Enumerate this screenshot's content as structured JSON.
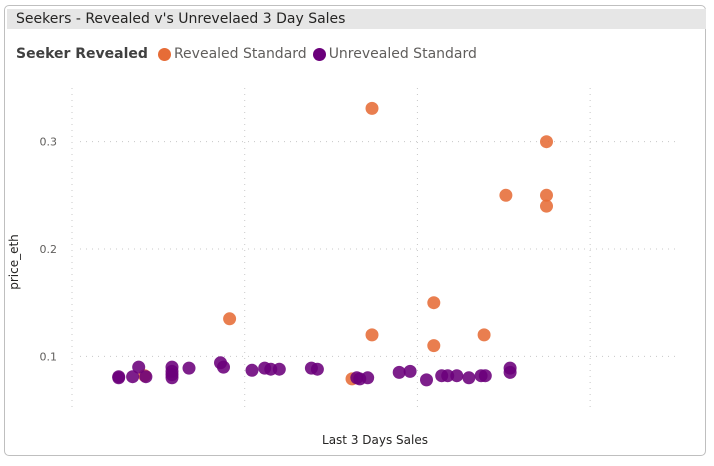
{
  "chart_data": {
    "type": "scatter",
    "title": "Seekers - Revealed v's Unrevelaed 3 Day Sales",
    "xlabel": "Last 3 Days Sales",
    "ylabel": "price_eth",
    "ylim": [
      0.05,
      0.35
    ],
    "yticks": [
      "0.1",
      "0.2",
      "0.3"
    ],
    "legend": {
      "title": "Seeker Revealed",
      "position": "top-left",
      "entries": [
        "Revealed Standard",
        "Unrevealed Standard"
      ]
    },
    "grid": true,
    "series": [
      {
        "name": "Revealed Standard",
        "color": "#E66C37",
        "points": [
          [
            0.12,
            0.082
          ],
          [
            0.26,
            0.135
          ],
          [
            0.462,
            0.079
          ],
          [
            0.495,
            0.331
          ],
          [
            0.495,
            0.12
          ],
          [
            0.597,
            0.15
          ],
          [
            0.597,
            0.11
          ],
          [
            0.68,
            0.12
          ],
          [
            0.716,
            0.25
          ],
          [
            0.783,
            0.3
          ],
          [
            0.783,
            0.25
          ],
          [
            0.783,
            0.24
          ]
        ]
      },
      {
        "name": "Unrevealed Standard",
        "color": "#6B007B",
        "points": [
          [
            0.077,
            0.081
          ],
          [
            0.077,
            0.08
          ],
          [
            0.1,
            0.081
          ],
          [
            0.11,
            0.09
          ],
          [
            0.122,
            0.081
          ],
          [
            0.165,
            0.09
          ],
          [
            0.165,
            0.086
          ],
          [
            0.165,
            0.083
          ],
          [
            0.165,
            0.08
          ],
          [
            0.193,
            0.089
          ],
          [
            0.245,
            0.094
          ],
          [
            0.25,
            0.09
          ],
          [
            0.297,
            0.087
          ],
          [
            0.318,
            0.089
          ],
          [
            0.328,
            0.088
          ],
          [
            0.342,
            0.088
          ],
          [
            0.395,
            0.089
          ],
          [
            0.405,
            0.088
          ],
          [
            0.47,
            0.08
          ],
          [
            0.475,
            0.079
          ],
          [
            0.488,
            0.08
          ],
          [
            0.54,
            0.085
          ],
          [
            0.558,
            0.086
          ],
          [
            0.585,
            0.078
          ],
          [
            0.61,
            0.082
          ],
          [
            0.62,
            0.082
          ],
          [
            0.635,
            0.082
          ],
          [
            0.655,
            0.08
          ],
          [
            0.675,
            0.082
          ],
          [
            0.682,
            0.082
          ],
          [
            0.723,
            0.089
          ],
          [
            0.723,
            0.085
          ]
        ]
      }
    ]
  }
}
